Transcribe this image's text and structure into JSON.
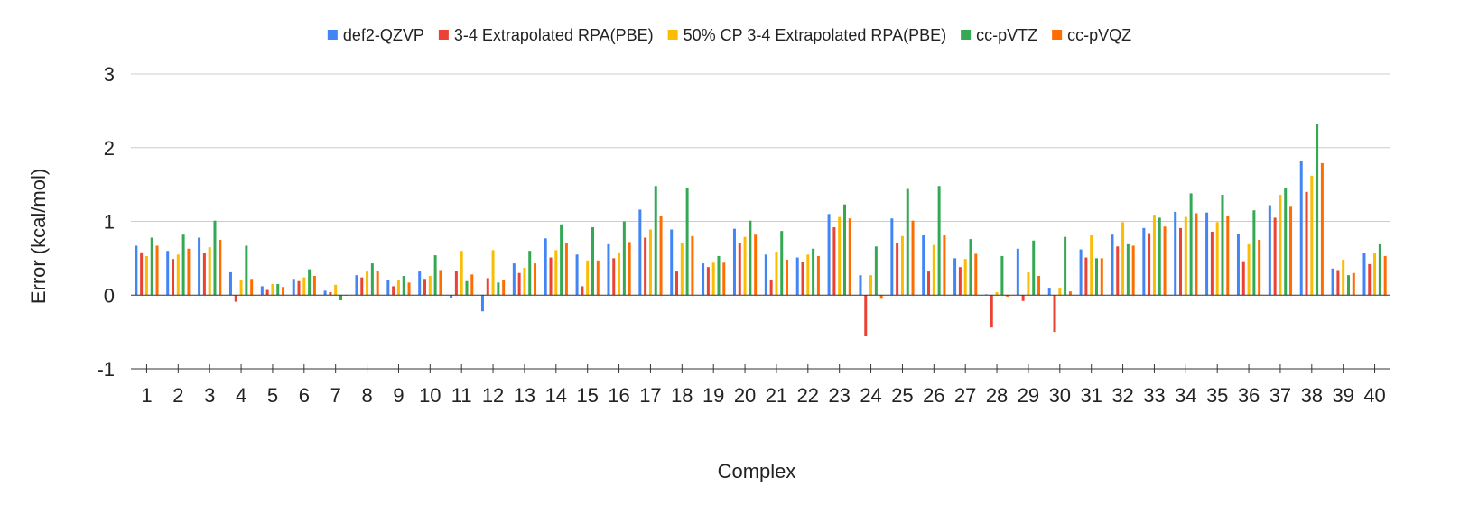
{
  "chart_data": {
    "type": "bar",
    "title": "",
    "xlabel": "Complex",
    "ylabel": "Error (kcal/mol)",
    "ylim": [
      -1,
      3
    ],
    "yticks": [
      -1,
      0,
      1,
      2,
      3
    ],
    "grid": true,
    "legend_position": "top",
    "categories": [
      "1",
      "2",
      "3",
      "4",
      "5",
      "6",
      "7",
      "8",
      "9",
      "10",
      "11",
      "12",
      "13",
      "14",
      "15",
      "16",
      "17",
      "18",
      "19",
      "20",
      "21",
      "22",
      "23",
      "24",
      "25",
      "26",
      "27",
      "28",
      "29",
      "30",
      "31",
      "32",
      "33",
      "34",
      "35",
      "36",
      "37",
      "38",
      "39",
      "40"
    ],
    "series": [
      {
        "name": "def2-QZVP",
        "color": "#4285f4",
        "values": [
          0.67,
          0.6,
          0.78,
          0.31,
          0.12,
          0.22,
          0.06,
          0.27,
          0.21,
          0.32,
          -0.04,
          -0.22,
          0.43,
          0.77,
          0.55,
          0.69,
          1.16,
          0.89,
          0.43,
          0.9,
          0.55,
          0.51,
          1.1,
          0.27,
          1.04,
          0.81,
          0.5,
          0.01,
          0.63,
          0.1,
          0.62,
          0.82,
          0.91,
          1.13,
          1.12,
          0.83,
          1.22,
          1.82,
          0.36,
          0.57
        ]
      },
      {
        "name": "3-4 Extrapolated RPA(PBE)",
        "color": "#ea4335",
        "values": [
          0.58,
          0.49,
          0.57,
          -0.09,
          0.07,
          0.19,
          0.04,
          0.24,
          0.12,
          0.22,
          0.33,
          0.23,
          0.3,
          0.51,
          0.12,
          0.5,
          0.78,
          0.32,
          0.38,
          0.7,
          0.21,
          0.45,
          0.92,
          -0.56,
          0.71,
          0.32,
          0.38,
          -0.44,
          -0.08,
          -0.5,
          0.51,
          0.66,
          0.84,
          0.91,
          0.86,
          0.46,
          1.05,
          1.4,
          0.34,
          0.42
        ]
      },
      {
        "name": "50% CP 3-4 Extrapolated RPA(PBE)",
        "color": "#fbbc04",
        "values": [
          0.53,
          0.55,
          0.65,
          0.21,
          0.15,
          0.24,
          0.14,
          0.32,
          0.2,
          0.26,
          0.6,
          0.61,
          0.37,
          0.61,
          0.47,
          0.58,
          0.89,
          0.71,
          0.44,
          0.79,
          0.59,
          0.55,
          1.06,
          0.27,
          0.8,
          0.68,
          0.49,
          0.04,
          0.31,
          0.1,
          0.81,
          0.99,
          1.09,
          1.06,
          0.99,
          0.69,
          1.36,
          1.62,
          0.48,
          0.57
        ]
      },
      {
        "name": "cc-pVTZ",
        "color": "#34a853",
        "values": [
          0.78,
          0.82,
          1.01,
          0.67,
          0.15,
          0.35,
          -0.07,
          0.43,
          0.26,
          0.54,
          0.19,
          0.17,
          0.6,
          0.96,
          0.92,
          1.0,
          1.48,
          1.45,
          0.53,
          1.01,
          0.87,
          0.63,
          1.23,
          0.66,
          1.44,
          1.48,
          0.76,
          0.53,
          0.74,
          0.79,
          0.5,
          0.69,
          1.05,
          1.38,
          1.36,
          1.15,
          1.45,
          2.32,
          0.27,
          0.69
        ]
      },
      {
        "name": "cc-pVQZ",
        "color": "#ff6d01",
        "values": [
          0.67,
          0.63,
          0.75,
          0.22,
          0.11,
          0.26,
          0.0,
          0.33,
          0.17,
          0.34,
          0.28,
          0.2,
          0.43,
          0.7,
          0.47,
          0.72,
          1.08,
          0.8,
          0.44,
          0.82,
          0.48,
          0.53,
          1.04,
          -0.05,
          1.01,
          0.81,
          0.56,
          -0.02,
          0.26,
          0.05,
          0.5,
          0.67,
          0.93,
          1.11,
          1.07,
          0.75,
          1.21,
          1.79,
          0.3,
          0.53
        ]
      }
    ]
  }
}
